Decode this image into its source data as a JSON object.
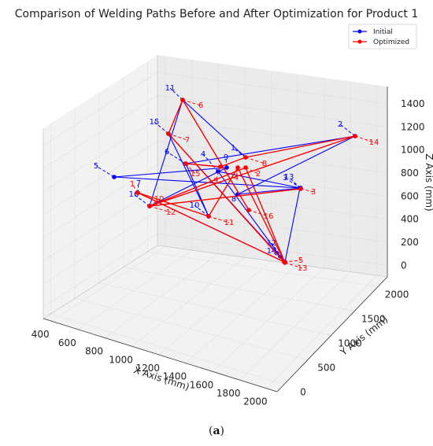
{
  "chart_data": {
    "type": "line3d",
    "title": "Comparison of Welding Paths Before and After Optimization for Product 1",
    "xlabel": "X Axis (mm)",
    "ylabel": "Y Axis (mm)",
    "zlabel": "Z Axis (mm)",
    "xticks": [
      "400",
      "600",
      "800",
      "1000",
      "1200",
      "1400",
      "1600",
      "1800",
      "2000"
    ],
    "yticks": [
      "0",
      "500",
      "1000",
      "1500",
      "2000"
    ],
    "zticks": [
      "0",
      "200",
      "400",
      "600",
      "800",
      "1000",
      "1200",
      "1400"
    ],
    "grid": true,
    "legend_position": "top-right",
    "series": [
      {
        "name": "Initial",
        "color": "#0000ff",
        "labels": [
          "1",
          "2",
          "3",
          "4",
          "5",
          "6",
          "7",
          "8",
          "9",
          "10",
          "11",
          "12",
          "13",
          "14",
          "15",
          "16"
        ]
      },
      {
        "name": "Optimized",
        "color": "#ff0000",
        "labels": [
          "1",
          "2",
          "3",
          "4",
          "5",
          "6",
          "7",
          "8",
          "9",
          "10",
          "11",
          "12",
          "13",
          "14",
          "15",
          "16"
        ]
      }
    ]
  },
  "caption": {
    "label": "a"
  }
}
